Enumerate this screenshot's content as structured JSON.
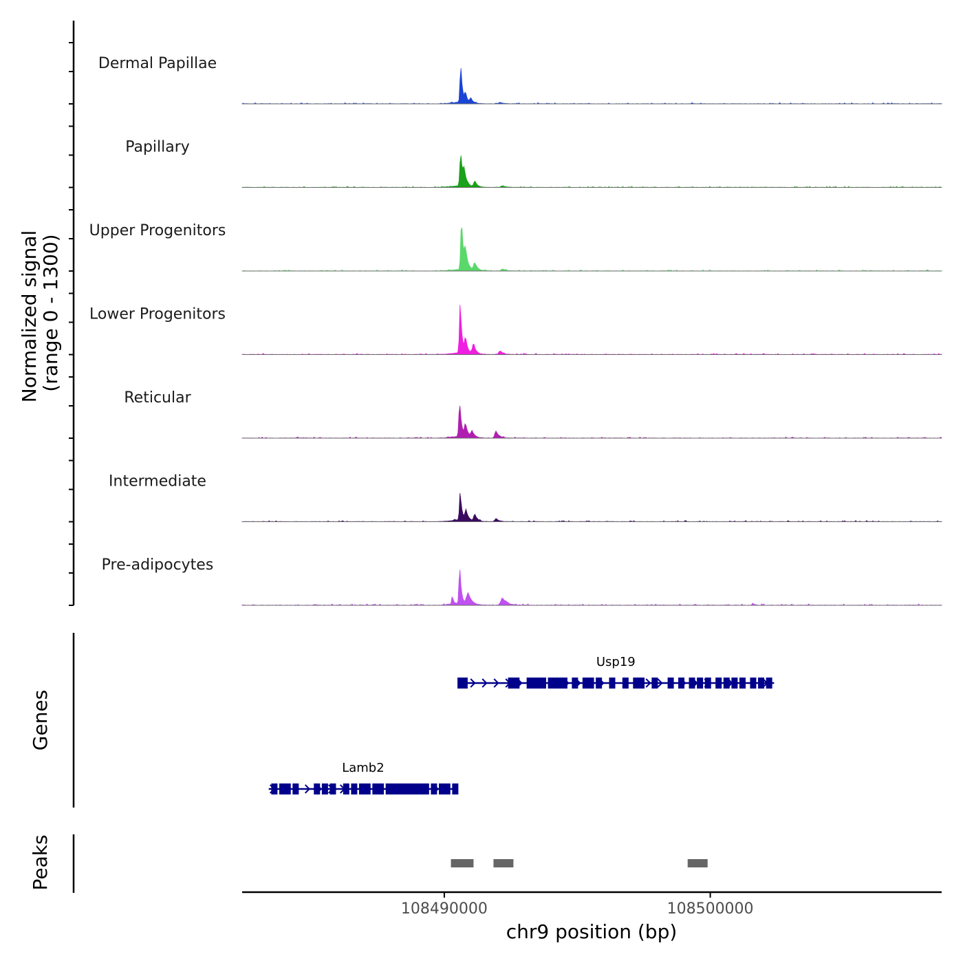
{
  "chart_data": {
    "type": "area",
    "title": "",
    "xlabel": "chr9 position (bp)",
    "ylabel_line1": "Normalized signal",
    "ylabel_line2": "(range 0 - 1300)",
    "ylim": [
      0,
      1300
    ],
    "xlim": [
      108482400,
      108508700
    ],
    "x_ticks": [
      108490000,
      108500000
    ],
    "x_tick_labels": [
      "108490000",
      "108500000"
    ],
    "series": [
      {
        "name": "Dermal Papillae",
        "color": "#1a45d6",
        "peaks": [
          [
            108490620,
            960,
            60
          ],
          [
            108490800,
            230,
            60
          ],
          [
            108491000,
            120,
            80
          ],
          [
            108492100,
            35,
            120
          ]
        ],
        "noise": 12
      },
      {
        "name": "Papillary",
        "color": "#19a119",
        "peaks": [
          [
            108490620,
            860,
            70
          ],
          [
            108490750,
            330,
            80
          ],
          [
            108491150,
            150,
            90
          ],
          [
            108492200,
            40,
            120
          ]
        ],
        "noise": 10
      },
      {
        "name": "Upper Progenitors",
        "color": "#5ad86a",
        "peaks": [
          [
            108490650,
            1300,
            65
          ],
          [
            108490800,
            450,
            80
          ],
          [
            108491150,
            190,
            100
          ],
          [
            108492200,
            45,
            120
          ]
        ],
        "noise": 12
      },
      {
        "name": "Lower Progenitors",
        "color": "#f01ee0",
        "peaks": [
          [
            108490600,
            1300,
            60
          ],
          [
            108490800,
            380,
            70
          ],
          [
            108491100,
            260,
            90
          ],
          [
            108492100,
            90,
            110
          ]
        ],
        "noise": 14
      },
      {
        "name": "Reticular",
        "color": "#b01eb0",
        "peaks": [
          [
            108490580,
            890,
            65
          ],
          [
            108490800,
            320,
            80
          ],
          [
            108491050,
            150,
            100
          ],
          [
            108491950,
            180,
            100
          ]
        ],
        "noise": 12
      },
      {
        "name": "Intermediate",
        "color": "#3a0a60",
        "peaks": [
          [
            108490600,
            730,
            60
          ],
          [
            108490820,
            260,
            80
          ],
          [
            108491150,
            180,
            90
          ],
          [
            108491950,
            80,
            100
          ]
        ],
        "noise": 12
      },
      {
        "name": "Pre-adipocytes",
        "color": "#c050f0",
        "peaks": [
          [
            108490580,
            1000,
            55
          ],
          [
            108490300,
            200,
            50
          ],
          [
            108490900,
            300,
            120
          ],
          [
            108492200,
            180,
            150
          ],
          [
            108501600,
            50,
            60
          ]
        ],
        "noise": 15
      }
    ],
    "genes": [
      {
        "name": "Usp19",
        "start": 108490500,
        "end": 108502400,
        "strand": "+",
        "exons": [
          108490600,
          108490750,
          108492500,
          108492700,
          108493200,
          108493300,
          108493500,
          108493600,
          108493700,
          108494000,
          108494200,
          108494300,
          108494500,
          108494900,
          108495300,
          108495500,
          108495800,
          108496300,
          108496800,
          108497200,
          108497400,
          108497900,
          108498500,
          108498900,
          108499300,
          108499600,
          108499900,
          108500300,
          108500600,
          108500900,
          108501200,
          108501600,
          108501900,
          108502200
        ]
      },
      {
        "name": "Lamb2",
        "start": 108483400,
        "end": 108490500,
        "strand": "+",
        "exons": [
          108483600,
          108483900,
          108484100,
          108484400,
          108485200,
          108485500,
          108485800,
          108486300,
          108486600,
          108486900,
          108487100,
          108487400,
          108487600,
          108487900,
          108488100,
          108488300,
          108488500,
          108488700,
          108488900,
          108489100,
          108489300,
          108489600,
          108489900,
          108490100,
          108490400
        ]
      }
    ],
    "peak_regions": [
      [
        108490250,
        108491100
      ],
      [
        108491850,
        108492600
      ],
      [
        108499150,
        108499900
      ]
    ],
    "panel_labels": {
      "genes": "Genes",
      "peaks": "Peaks"
    }
  }
}
